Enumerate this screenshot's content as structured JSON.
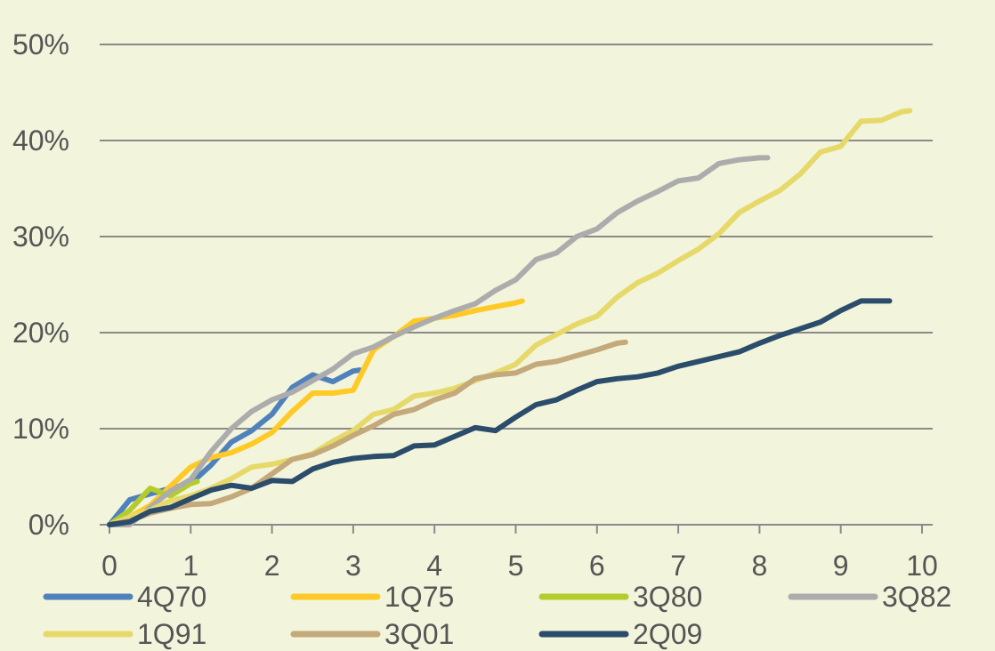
{
  "chart_data": {
    "type": "line",
    "title": "",
    "xlabel": "",
    "ylabel": "",
    "xlim": [
      0,
      10
    ],
    "ylim": [
      0,
      50
    ],
    "x_ticks": [
      "0",
      "1",
      "2",
      "3",
      "4",
      "5",
      "6",
      "7",
      "8",
      "9",
      "10"
    ],
    "y_ticks": [
      "0%",
      "10%",
      "20%",
      "30%",
      "40%",
      "50%"
    ],
    "grid": "horizontal",
    "legend_position": "bottom",
    "series": [
      {
        "name": "4Q70",
        "color": "#4f81bd",
        "points": [
          [
            0,
            0
          ],
          [
            0.25,
            2.6
          ],
          [
            0.5,
            3.2
          ],
          [
            0.75,
            3.8
          ],
          [
            1,
            4.3
          ],
          [
            1.25,
            6.2
          ],
          [
            1.5,
            8.6
          ],
          [
            1.75,
            9.8
          ],
          [
            2,
            11.5
          ],
          [
            2.25,
            14.3
          ],
          [
            2.5,
            15.6
          ],
          [
            2.75,
            14.9
          ],
          [
            3,
            16
          ],
          [
            3.08,
            16.1
          ]
        ]
      },
      {
        "name": "1Q75",
        "color": "#ffc926",
        "points": [
          [
            0,
            0
          ],
          [
            0.25,
            0.8
          ],
          [
            0.5,
            2
          ],
          [
            0.75,
            4
          ],
          [
            1,
            6
          ],
          [
            1.25,
            7
          ],
          [
            1.5,
            7.5
          ],
          [
            1.75,
            8.4
          ],
          [
            2,
            9.6
          ],
          [
            2.25,
            11.8
          ],
          [
            2.5,
            13.7
          ],
          [
            2.75,
            13.7
          ],
          [
            3,
            14
          ],
          [
            3.25,
            18.2
          ],
          [
            3.5,
            19.6
          ],
          [
            3.75,
            21.2
          ],
          [
            4,
            21.5
          ],
          [
            4.25,
            21.8
          ],
          [
            4.5,
            22.3
          ],
          [
            4.75,
            22.7
          ],
          [
            5,
            23.1
          ],
          [
            5.08,
            23.3
          ]
        ]
      },
      {
        "name": "3Q80",
        "color": "#b3cc2b",
        "points": [
          [
            0,
            0
          ],
          [
            0.25,
            1.5
          ],
          [
            0.5,
            3.8
          ],
          [
            0.75,
            3
          ],
          [
            1,
            4.3
          ],
          [
            1.08,
            4.5
          ]
        ]
      },
      {
        "name": "3Q82",
        "color": "#acacac",
        "points": [
          [
            0,
            0
          ],
          [
            0.25,
            0
          ],
          [
            0.5,
            1.8
          ],
          [
            0.75,
            3.5
          ],
          [
            1,
            4.7
          ],
          [
            1.25,
            7.6
          ],
          [
            1.5,
            10
          ],
          [
            1.75,
            11.8
          ],
          [
            2,
            13
          ],
          [
            2.25,
            13.8
          ],
          [
            2.5,
            15
          ],
          [
            2.75,
            16.2
          ],
          [
            3,
            17.8
          ],
          [
            3.25,
            18.5
          ],
          [
            3.5,
            19.6
          ],
          [
            3.75,
            20.6
          ],
          [
            4,
            21.5
          ],
          [
            4.25,
            22.3
          ],
          [
            4.5,
            23
          ],
          [
            4.75,
            24.4
          ],
          [
            5,
            25.5
          ],
          [
            5.25,
            27.6
          ],
          [
            5.5,
            28.3
          ],
          [
            5.75,
            30
          ],
          [
            6,
            30.8
          ],
          [
            6.25,
            32.5
          ],
          [
            6.5,
            33.7
          ],
          [
            6.75,
            34.7
          ],
          [
            7,
            35.8
          ],
          [
            7.25,
            36.1
          ],
          [
            7.5,
            37.6
          ],
          [
            7.75,
            38
          ],
          [
            8,
            38.2
          ],
          [
            8.1,
            38.2
          ]
        ]
      },
      {
        "name": "1Q91",
        "color": "#e6d96a",
        "points": [
          [
            0,
            0
          ],
          [
            0.25,
            0.8
          ],
          [
            0.5,
            1.5
          ],
          [
            0.75,
            2.5
          ],
          [
            1,
            3
          ],
          [
            1.25,
            3.8
          ],
          [
            1.5,
            4.8
          ],
          [
            1.75,
            6
          ],
          [
            2,
            6.3
          ],
          [
            2.25,
            6.8
          ],
          [
            2.5,
            7.4
          ],
          [
            2.75,
            8.7
          ],
          [
            3,
            9.8
          ],
          [
            3.25,
            11.5
          ],
          [
            3.5,
            12
          ],
          [
            3.75,
            13.4
          ],
          [
            4,
            13.7
          ],
          [
            4.25,
            14.2
          ],
          [
            4.5,
            15
          ],
          [
            4.75,
            15.8
          ],
          [
            5,
            16.7
          ],
          [
            5.25,
            18.7
          ],
          [
            5.5,
            19.8
          ],
          [
            5.75,
            20.9
          ],
          [
            6,
            21.7
          ],
          [
            6.25,
            23.7
          ],
          [
            6.5,
            25.2
          ],
          [
            6.75,
            26.2
          ],
          [
            7,
            27.5
          ],
          [
            7.25,
            28.7
          ],
          [
            7.5,
            30.3
          ],
          [
            7.75,
            32.5
          ],
          [
            8,
            33.7
          ],
          [
            8.25,
            34.8
          ],
          [
            8.5,
            36.5
          ],
          [
            8.75,
            38.8
          ],
          [
            9,
            39.4
          ],
          [
            9.25,
            42
          ],
          [
            9.5,
            42.1
          ],
          [
            9.75,
            43
          ],
          [
            9.85,
            43.1
          ]
        ]
      },
      {
        "name": "3Q01",
        "color": "#c4a97a",
        "points": [
          [
            0,
            0
          ],
          [
            0.25,
            0.4
          ],
          [
            0.5,
            1.2
          ],
          [
            0.75,
            1.7
          ],
          [
            1,
            2.1
          ],
          [
            1.25,
            2.2
          ],
          [
            1.5,
            2.9
          ],
          [
            1.75,
            3.8
          ],
          [
            2,
            5.3
          ],
          [
            2.25,
            6.8
          ],
          [
            2.5,
            7.3
          ],
          [
            2.75,
            8.2
          ],
          [
            3,
            9.3
          ],
          [
            3.25,
            10.3
          ],
          [
            3.5,
            11.5
          ],
          [
            3.75,
            12
          ],
          [
            4,
            13
          ],
          [
            4.25,
            13.7
          ],
          [
            4.5,
            15.2
          ],
          [
            4.75,
            15.6
          ],
          [
            5,
            15.8
          ],
          [
            5.25,
            16.7
          ],
          [
            5.5,
            17
          ],
          [
            5.75,
            17.6
          ],
          [
            6,
            18.2
          ],
          [
            6.25,
            18.9
          ],
          [
            6.35,
            19
          ]
        ]
      },
      {
        "name": "2Q09",
        "color": "#2b4c6a",
        "points": [
          [
            0,
            0
          ],
          [
            0.25,
            0.3
          ],
          [
            0.5,
            1.4
          ],
          [
            0.75,
            1.8
          ],
          [
            1,
            2.7
          ],
          [
            1.25,
            3.6
          ],
          [
            1.5,
            4.1
          ],
          [
            1.75,
            3.8
          ],
          [
            2,
            4.6
          ],
          [
            2.25,
            4.5
          ],
          [
            2.5,
            5.8
          ],
          [
            2.75,
            6.5
          ],
          [
            3,
            6.9
          ],
          [
            3.25,
            7.1
          ],
          [
            3.5,
            7.2
          ],
          [
            3.75,
            8.2
          ],
          [
            4,
            8.3
          ],
          [
            4.25,
            9.2
          ],
          [
            4.5,
            10.1
          ],
          [
            4.75,
            9.8
          ],
          [
            5,
            11.2
          ],
          [
            5.25,
            12.5
          ],
          [
            5.5,
            13
          ],
          [
            5.75,
            14
          ],
          [
            6,
            14.9
          ],
          [
            6.25,
            15.2
          ],
          [
            6.5,
            15.4
          ],
          [
            6.75,
            15.8
          ],
          [
            7,
            16.5
          ],
          [
            7.25,
            17
          ],
          [
            7.5,
            17.5
          ],
          [
            7.75,
            18
          ],
          [
            8,
            18.9
          ],
          [
            8.25,
            19.7
          ],
          [
            8.5,
            20.4
          ],
          [
            8.75,
            21.1
          ],
          [
            9,
            22.3
          ],
          [
            9.25,
            23.3
          ],
          [
            9.5,
            23.3
          ],
          [
            9.6,
            23.3
          ]
        ]
      }
    ]
  }
}
